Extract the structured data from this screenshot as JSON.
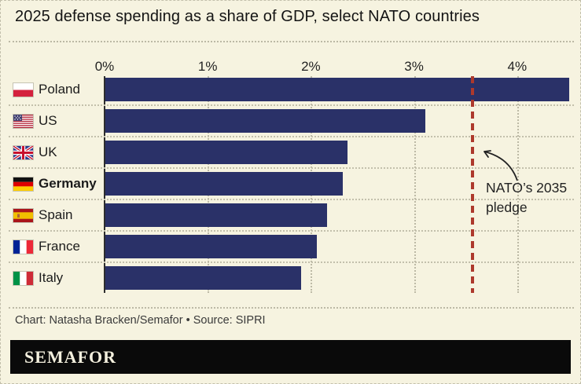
{
  "title": "2025 defense spending as a share of GDP, select NATO countries",
  "chart_data": {
    "type": "bar",
    "orientation": "horizontal",
    "title": "2025 defense spending as a share of GDP, select NATO countries",
    "categories": [
      "Poland",
      "US",
      "UK",
      "Germany",
      "Spain",
      "France",
      "Italy"
    ],
    "values": [
      4.5,
      3.1,
      2.35,
      2.3,
      2.15,
      2.05,
      1.9
    ],
    "unit": "% of GDP",
    "flags": [
      "poland",
      "us",
      "uk",
      "germany",
      "spain",
      "france",
      "italy"
    ],
    "highlighted_category": "Germany",
    "x_ticks": [
      "0%",
      "1%",
      "2%",
      "3%",
      "4%"
    ],
    "x_tick_values": [
      0,
      1,
      2,
      3,
      4
    ],
    "xlim": [
      0,
      4.55
    ],
    "grid": "vertical-dotted",
    "legend": "none",
    "bar_color": "#2a3168",
    "reference_line": {
      "value": 3.5,
      "drawn_at_pct": 3.57,
      "label": "NATO’s 2035 pledge",
      "color": "#ad392c",
      "style": "dashed"
    }
  },
  "annotation": {
    "line1": "NATO’s 2035",
    "line2": "pledge"
  },
  "credit": "Chart: Natasha Bracken/Semafor • Source: SIPRI",
  "wordmark": "SEMAFOR",
  "colors": {
    "background": "#f6f3e0",
    "bar": "#2a3168",
    "pledge_line": "#ad392c",
    "text": "#1e1e1e",
    "wordmark_bg": "#0a0a0a",
    "wordmark_text": "#f4f0de"
  }
}
